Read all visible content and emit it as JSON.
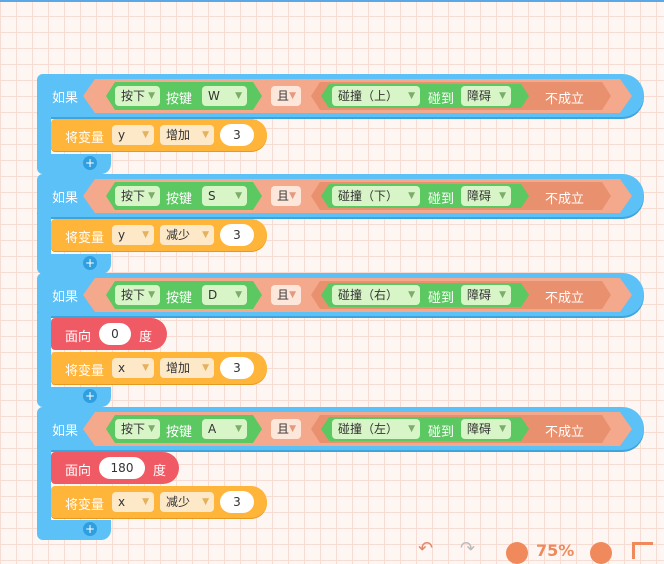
{
  "if_label": "如果",
  "and_label": "且",
  "press_label": "按下",
  "key_label": "按键",
  "collide_label": "碰到",
  "not_label": "不成立",
  "set_label": "将变量",
  "face_label": "面向",
  "degree_label": "度",
  "add_icon": "+",
  "rules": [
    {
      "key": "W",
      "direction": "碰撞（上）",
      "obstacle": "障碍",
      "face": null,
      "variable": "y",
      "op": "增加",
      "amount": "3"
    },
    {
      "key": "S",
      "direction": "碰撞（下）",
      "obstacle": "障碍",
      "face": null,
      "variable": "y",
      "op": "减少",
      "amount": "3"
    },
    {
      "key": "D",
      "direction": "碰撞（右）",
      "obstacle": "障碍",
      "face": "0",
      "variable": "x",
      "op": "增加",
      "amount": "3"
    },
    {
      "key": "A",
      "direction": "碰撞（左）",
      "obstacle": "障碍",
      "face": "180",
      "variable": "x",
      "op": "减少",
      "amount": "3"
    }
  ],
  "zoom": {
    "value": "75%"
  },
  "colors": {
    "control": "#5cc1f6",
    "logic": "#f4a88c",
    "sensing": "#5cc861",
    "variable": "#ffb43a",
    "motion": "#f05a64"
  }
}
